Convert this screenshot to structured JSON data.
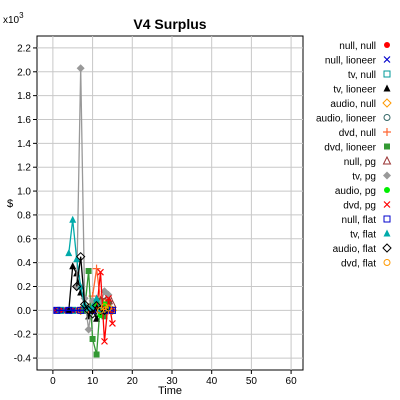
{
  "chart_data": {
    "type": "line",
    "title": "V4 Surplus",
    "xlabel": "Time",
    "ylabel": "$",
    "y_exponent_label": "x10",
    "y_exponent_power": "3",
    "xlim": [
      -4,
      63
    ],
    "ylim": [
      -0.5,
      2.3
    ],
    "x_ticks": [
      0,
      10,
      20,
      30,
      40,
      50,
      60
    ],
    "y_ticks": [
      -0.4,
      -0.2,
      0.0,
      0.2,
      0.4,
      0.6,
      0.8,
      1.0,
      1.2,
      1.4,
      1.6,
      1.8,
      2.0,
      2.2
    ],
    "x_tick_labels": [
      "0",
      "10",
      "20",
      "30",
      "40",
      "50",
      "60"
    ],
    "y_tick_labels": [
      "-0.4",
      "-0.2",
      "0.0",
      "0.2",
      "0.4",
      "0.6",
      "0.8",
      "1.0",
      "1.2",
      "1.4",
      "1.6",
      "1.8",
      "2.0",
      "2.2"
    ],
    "grid": true,
    "legend_position": "right",
    "series": [
      {
        "name": "null, null",
        "color": "#ff0000",
        "marker": "circle-filled",
        "points": [
          [
            1,
            0
          ],
          [
            2,
            0
          ],
          [
            3,
            0
          ],
          [
            4,
            0
          ],
          [
            5,
            0
          ],
          [
            6,
            0
          ],
          [
            7,
            0
          ],
          [
            8,
            0
          ],
          [
            9,
            0
          ],
          [
            10,
            0
          ],
          [
            11,
            0
          ],
          [
            12,
            0
          ],
          [
            13,
            0
          ],
          [
            14,
            0
          ],
          [
            15,
            0
          ]
        ]
      },
      {
        "name": "null, lioneer",
        "color": "#0000cc",
        "marker": "x",
        "points": [
          [
            1,
            0
          ],
          [
            3,
            0
          ],
          [
            5,
            0
          ],
          [
            7,
            0
          ],
          [
            9,
            0
          ],
          [
            11,
            0
          ],
          [
            13,
            0
          ],
          [
            15,
            0
          ]
        ]
      },
      {
        "name": "tv, null",
        "color": "#009999",
        "marker": "square-open",
        "points": [
          [
            2,
            0
          ],
          [
            5,
            0
          ],
          [
            8,
            0
          ],
          [
            11,
            0.01
          ],
          [
            13,
            0.02
          ],
          [
            15,
            0
          ]
        ]
      },
      {
        "name": "tv, lioneer",
        "color": "#000000",
        "marker": "triangle-filled",
        "points": [
          [
            4,
            0
          ],
          [
            5,
            0.37
          ],
          [
            6,
            0.31
          ],
          [
            7,
            0.15
          ],
          [
            8,
            0.05
          ],
          [
            9,
            -0.05
          ],
          [
            10,
            0.01
          ],
          [
            11,
            -0.07
          ],
          [
            12,
            0.01
          ],
          [
            13,
            0
          ],
          [
            14,
            0
          ]
        ]
      },
      {
        "name": "audio, null",
        "color": "#ff9900",
        "marker": "diamond-open",
        "points": [
          [
            7,
            0
          ],
          [
            9,
            0.02
          ],
          [
            11,
            0.03
          ],
          [
            13,
            0.06
          ],
          [
            15,
            0
          ]
        ]
      },
      {
        "name": "audio, lioneer",
        "color": "#336666",
        "marker": "circle-open",
        "points": [
          [
            8,
            0
          ],
          [
            10,
            0.05
          ],
          [
            12,
            0.02
          ],
          [
            14,
            0
          ]
        ]
      },
      {
        "name": "dvd, null",
        "color": "#ff6633",
        "marker": "plus",
        "points": [
          [
            9,
            0
          ],
          [
            10,
            0.12
          ],
          [
            11,
            0.35
          ],
          [
            12,
            0.08
          ],
          [
            13,
            -0.02
          ],
          [
            14,
            0
          ]
        ]
      },
      {
        "name": "dvd, lioneer",
        "color": "#339933",
        "marker": "square-filled",
        "points": [
          [
            8,
            0
          ],
          [
            9,
            0.33
          ],
          [
            10,
            -0.24
          ],
          [
            11,
            -0.37
          ],
          [
            12,
            0.08
          ],
          [
            13,
            -0.05
          ],
          [
            14,
            0.06
          ]
        ]
      },
      {
        "name": "null, pg",
        "color": "#993333",
        "marker": "triangle-open",
        "points": [
          [
            10,
            0
          ],
          [
            12,
            0.08
          ],
          [
            14,
            0.12
          ],
          [
            15,
            0.05
          ]
        ]
      },
      {
        "name": "tv, pg",
        "color": "#999999",
        "marker": "diamond-filled",
        "points": [
          [
            6,
            0.2
          ],
          [
            7,
            2.03
          ],
          [
            8,
            0.1
          ],
          [
            9,
            -0.16
          ],
          [
            10,
            0.08
          ],
          [
            11,
            0
          ],
          [
            12,
            0.06
          ],
          [
            13,
            0.16
          ],
          [
            14,
            0.13
          ]
        ]
      },
      {
        "name": "audio, pg",
        "color": "#00ee00",
        "marker": "circle-filled",
        "points": [
          [
            10,
            0.02
          ],
          [
            11,
            0.06
          ],
          [
            12,
            -0.04
          ],
          [
            13,
            0.05
          ],
          [
            14,
            0.02
          ]
        ]
      },
      {
        "name": "dvd, pg",
        "color": "#ff0000",
        "marker": "x",
        "points": [
          [
            11,
            0
          ],
          [
            12,
            0.32
          ],
          [
            13,
            -0.26
          ],
          [
            14,
            0.1
          ],
          [
            15,
            -0.11
          ]
        ]
      },
      {
        "name": "null, flat",
        "color": "#0000cc",
        "marker": "square-open",
        "points": [
          [
            1,
            0
          ],
          [
            4,
            0
          ],
          [
            7,
            0
          ],
          [
            10,
            0
          ],
          [
            13,
            0
          ],
          [
            15,
            0
          ]
        ]
      },
      {
        "name": "tv, flat",
        "color": "#00aaaa",
        "marker": "triangle-filled",
        "points": [
          [
            4,
            0.48
          ],
          [
            5,
            0.76
          ],
          [
            6,
            0.43
          ],
          [
            7,
            0.2
          ],
          [
            8,
            0.05
          ],
          [
            9,
            0.02
          ],
          [
            10,
            0.03
          ],
          [
            11,
            0.1
          ],
          [
            12,
            0.01
          ]
        ]
      },
      {
        "name": "audio, flat",
        "color": "#000000",
        "marker": "diamond-open",
        "points": [
          [
            6,
            0.2
          ],
          [
            7,
            0.45
          ],
          [
            8,
            0.05
          ],
          [
            9,
            0
          ],
          [
            10,
            -0.03
          ],
          [
            11,
            0.04
          ],
          [
            12,
            0
          ],
          [
            13,
            0
          ]
        ]
      },
      {
        "name": "dvd, flat",
        "color": "#ff9900",
        "marker": "circle-open",
        "points": [
          [
            12,
            0
          ],
          [
            13,
            0.03
          ],
          [
            14,
            0.02
          ]
        ]
      }
    ]
  }
}
